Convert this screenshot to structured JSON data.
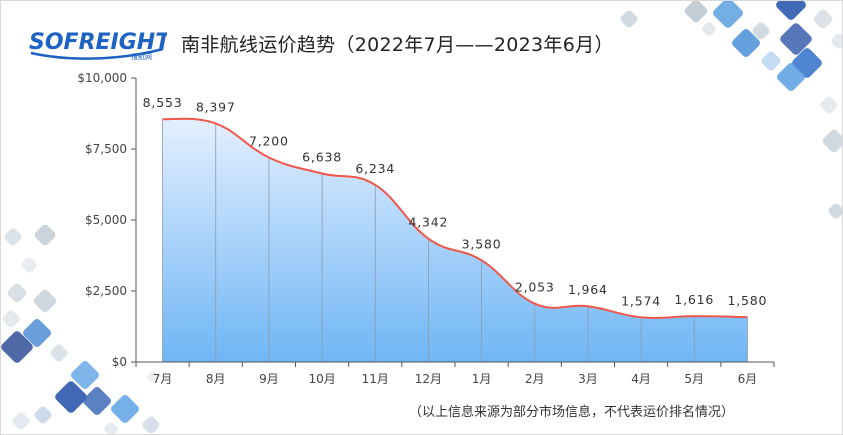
{
  "brand": {
    "logo_text": "SOFREIGHT",
    "logo_sub": "搜航网"
  },
  "title": "南非航线运价趋势（2022年7月——2023年6月）",
  "footnote": "（以上信息来源为部分市场信息，不代表运价排名情况）",
  "colors": {
    "line": "#f0574a",
    "area_top": "#e4efff",
    "area_bottom": "#6fb6f5",
    "axis": "#555555",
    "logo_blue": "#1e63c4"
  },
  "chart_data": {
    "type": "area",
    "title": "南非航线运价趋势（2022年7月——2023年6月）",
    "categories": [
      "7月",
      "8月",
      "9月",
      "10月",
      "11月",
      "12月",
      "1月",
      "2月",
      "3月",
      "4月",
      "5月",
      "6月"
    ],
    "values": [
      8553,
      8397,
      7200,
      6638,
      6234,
      4342,
      3580,
      2053,
      1964,
      1574,
      1616,
      1580
    ],
    "data_labels": [
      "8,553",
      "8,397",
      "7,200",
      "6,638",
      "6,234",
      "4,342",
      "3,580",
      "2,053",
      "1,964",
      "1,574",
      "1,616",
      "1,580"
    ],
    "yticks": [
      "$0",
      "$2,500",
      "$5,000",
      "$7,500",
      "$10,000"
    ],
    "ylim": [
      0,
      10000
    ],
    "xlabel": "",
    "ylabel": "",
    "grid": false,
    "smooth": true,
    "dropLines": true
  }
}
